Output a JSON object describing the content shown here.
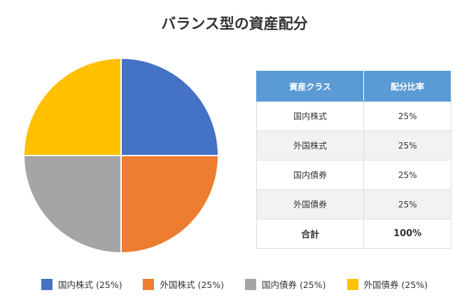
{
  "chart_data": {
    "type": "pie",
    "title": "バランス型の資産配分",
    "categories": [
      "国内株式",
      "外国株式",
      "国内債券",
      "外国債券"
    ],
    "values": [
      25,
      25,
      25,
      25
    ],
    "colors": [
      "#4472c4",
      "#ed7d31",
      "#a5a5a5",
      "#ffc000"
    ],
    "legend_labels": [
      "国内株式 (25%)",
      "外国株式 (25%)",
      "国内債券 (25%)",
      "外国債券 (25%)"
    ],
    "legend_position": "bottom"
  },
  "table": {
    "headers": [
      "資産クラス",
      "配分比率"
    ],
    "rows": [
      [
        "国内株式",
        "25%"
      ],
      [
        "外国株式",
        "25%"
      ],
      [
        "国内債券",
        "25%"
      ],
      [
        "外国債券",
        "25%"
      ]
    ],
    "total": [
      "合計",
      "100%"
    ]
  }
}
